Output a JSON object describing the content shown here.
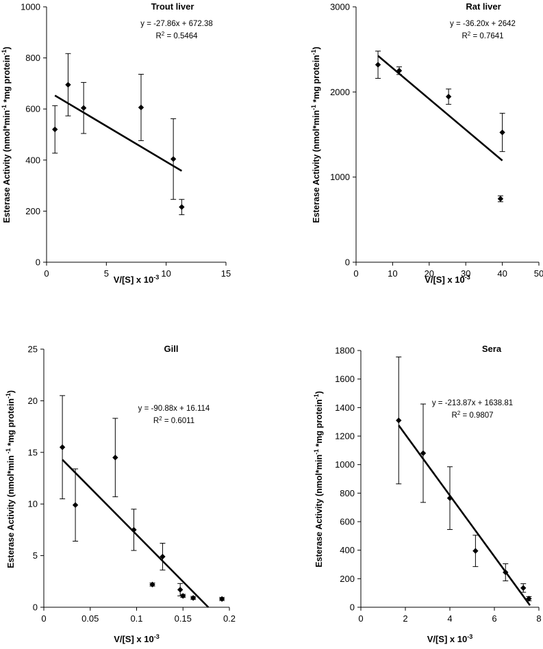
{
  "figure": {
    "panels_label": "Esterase activity linear plots"
  },
  "chart_data": [
    {
      "type": "scatter",
      "title": "Trout liver",
      "xlabel": "V/[S] x 10",
      "xlabel_sup": "-3",
      "ylabel": "Esterase Activity (nmol*min",
      "ylabel_sup1": "-1",
      "ylabel_mid": " *mg protein",
      "ylabel_sup2": "-1",
      "ylabel_end": ")",
      "xlim": [
        0,
        15
      ],
      "ylim": [
        0,
        1000
      ],
      "xticks": [
        0,
        5,
        10,
        15
      ],
      "yticks": [
        0,
        200,
        400,
        600,
        800,
        1000
      ],
      "xtick_labels": [
        "0",
        "5",
        "10",
        "15"
      ],
      "ytick_labels": [
        "0",
        "200",
        "400",
        "600",
        "800",
        "1000"
      ],
      "points": [
        {
          "x": 0.7,
          "y": 520,
          "err": 93
        },
        {
          "x": 1.8,
          "y": 695,
          "err": 122
        },
        {
          "x": 3.1,
          "y": 604,
          "err": 100
        },
        {
          "x": 7.9,
          "y": 606,
          "err": 130
        },
        {
          "x": 10.6,
          "y": 404,
          "err": 158
        },
        {
          "x": 11.3,
          "y": 216,
          "err": 30
        }
      ],
      "fit": {
        "slope": -27.86,
        "intercept": 672.38,
        "x_range": [
          0.7,
          11.3
        ]
      },
      "equation": "y = -27.86x + 672.38",
      "r2_label": "R",
      "r2_sup": "2",
      "r2_value": " = 0.5464",
      "grid": false
    },
    {
      "type": "scatter",
      "title": "Rat liver",
      "xlabel": "V/[S] x 10",
      "xlabel_sup": "-3",
      "ylabel": "Esterase Activity (nmol*min",
      "ylabel_sup1": "-1",
      "ylabel_mid": " *mg protein",
      "ylabel_sup2": "-1",
      "ylabel_end": ")",
      "xlim": [
        0,
        50
      ],
      "ylim": [
        0,
        3000
      ],
      "xticks": [
        0,
        10,
        20,
        30,
        40,
        50
      ],
      "yticks": [
        0,
        1000,
        2000,
        3000
      ],
      "xtick_labels": [
        "0",
        "10",
        "20",
        "30",
        "40",
        "50"
      ],
      "ytick_labels": [
        "0",
        "1000",
        "2000",
        "3000"
      ],
      "points": [
        {
          "x": 6,
          "y": 2320,
          "err": 160
        },
        {
          "x": 11.8,
          "y": 2250,
          "err": 45
        },
        {
          "x": 25.3,
          "y": 1945,
          "err": 90
        },
        {
          "x": 40,
          "y": 1525,
          "err": 225
        },
        {
          "x": 39.5,
          "y": 745,
          "err": 35
        }
      ],
      "fit": {
        "slope": -36.2,
        "intercept": 2642,
        "x_range": [
          6,
          40
        ]
      },
      "equation": "y = -36.20x + 2642",
      "r2_label": "R",
      "r2_sup": "2",
      "r2_value": " = 0.7641",
      "grid": false
    },
    {
      "type": "scatter",
      "title": "Gill",
      "xlabel": "V/[S] x 10",
      "xlabel_sup": "-3",
      "ylabel": "Esterase Activity (nmol*min",
      "ylabel_sup1": " -1",
      "ylabel_mid": " *mg protein",
      "ylabel_sup2": "-1",
      "ylabel_end": ")",
      "xlim": [
        0,
        0.2
      ],
      "ylim": [
        0,
        25
      ],
      "xticks": [
        0,
        0.05,
        0.1,
        0.15,
        0.2
      ],
      "yticks": [
        0,
        5,
        10,
        15,
        20,
        25
      ],
      "xtick_labels": [
        "0",
        "0.05",
        "0.1",
        "0.15",
        "0.2"
      ],
      "ytick_labels": [
        "0",
        "5",
        "10",
        "15",
        "20",
        "25"
      ],
      "points": [
        {
          "x": 0.02,
          "y": 15.5,
          "err": 5
        },
        {
          "x": 0.034,
          "y": 9.9,
          "err": 3.5
        },
        {
          "x": 0.077,
          "y": 14.5,
          "err": 3.8
        },
        {
          "x": 0.097,
          "y": 7.5,
          "err": 2
        },
        {
          "x": 0.128,
          "y": 4.9,
          "err": 1.3
        },
        {
          "x": 0.117,
          "y": 2.2,
          "err": 0.15
        },
        {
          "x": 0.147,
          "y": 1.7,
          "err": 0.6
        },
        {
          "x": 0.15,
          "y": 1.1,
          "err": 0.15
        },
        {
          "x": 0.161,
          "y": 0.9,
          "err": 0.15
        },
        {
          "x": 0.192,
          "y": 0.8,
          "err": 0.15
        }
      ],
      "fit": {
        "slope": -90.88,
        "intercept": 16.114,
        "x_range": [
          0.02,
          0.1773
        ]
      },
      "equation": "y = -90.88x + 16.114",
      "r2_label": "R",
      "r2_sup": "2",
      "r2_value": " = 0.6011",
      "grid": false
    },
    {
      "type": "scatter",
      "title": "Sera",
      "xlabel": "V/[S] x 10",
      "xlabel_sup": "-3",
      "ylabel": "Esterase Activity (nmol*min",
      "ylabel_sup1": "-1",
      "ylabel_mid": " *mg protein",
      "ylabel_sup2": "-1",
      "ylabel_end": ")",
      "xlim": [
        0,
        8
      ],
      "ylim": [
        0,
        1800
      ],
      "xticks": [
        0,
        2,
        4,
        6,
        8
      ],
      "yticks": [
        0,
        200,
        400,
        600,
        800,
        1000,
        1200,
        1400,
        1600,
        1800
      ],
      "xtick_labels": [
        "0",
        "2",
        "4",
        "6",
        "8"
      ],
      "ytick_labels": [
        "0",
        "200",
        "400",
        "600",
        "800",
        "1000",
        "1200",
        "1400",
        "1600",
        "1800"
      ],
      "points": [
        {
          "x": 1.7,
          "y": 1310,
          "err": 445
        },
        {
          "x": 2.8,
          "y": 1080,
          "err": 345
        },
        {
          "x": 4.0,
          "y": 765,
          "err": 220
        },
        {
          "x": 5.15,
          "y": 395,
          "err": 110
        },
        {
          "x": 6.5,
          "y": 245,
          "err": 60
        },
        {
          "x": 7.3,
          "y": 135,
          "err": 30
        },
        {
          "x": 7.55,
          "y": 60,
          "err": 15
        }
      ],
      "fit": {
        "slope": -213.87,
        "intercept": 1638.81,
        "x_range": [
          1.7,
          7.6
        ]
      },
      "equation": "y = -213.87x + 1638.81",
      "r2_label": "R",
      "r2_sup": "2",
      "r2_value": " = 0.9807",
      "grid": false
    }
  ]
}
